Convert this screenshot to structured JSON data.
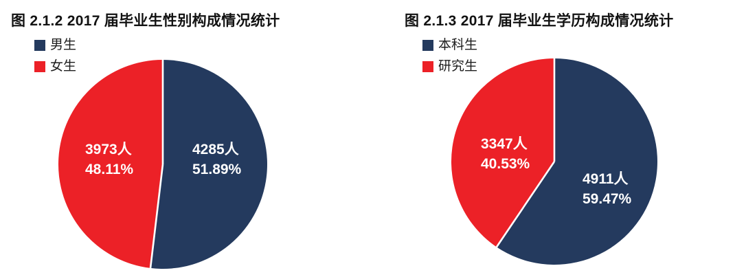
{
  "chart_data": [
    {
      "type": "pie",
      "title": "图 2.1.2 2017 届毕业生性别构成情况统计",
      "start_angle": "12-oclock",
      "direction": "clockwise",
      "legend_position": "top-left",
      "slice_separator_color": "#ffffff",
      "series": [
        {
          "label": "男生",
          "value": 4285,
          "pct": 51.89,
          "value_label": "4285人",
          "pct_label": "51.89%",
          "color": "#243a5e"
        },
        {
          "label": "女生",
          "value": 3973,
          "pct": 48.11,
          "value_label": "3973人",
          "pct_label": "48.11%",
          "color": "#ec2127"
        }
      ]
    },
    {
      "type": "pie",
      "title": "图 2.1.3 2017 届毕业生学历构成情况统计",
      "start_angle": "12-oclock",
      "direction": "clockwise",
      "legend_position": "top-left",
      "slice_separator_color": "#ffffff",
      "series": [
        {
          "label": "本科生",
          "value": 4911,
          "pct": 59.47,
          "value_label": "4911人",
          "pct_label": "59.47%",
          "color": "#243a5e"
        },
        {
          "label": "研究生",
          "value": 3347,
          "pct": 40.53,
          "value_label": "3347人",
          "pct_label": "40.53%",
          "color": "#ec2127"
        }
      ]
    }
  ]
}
